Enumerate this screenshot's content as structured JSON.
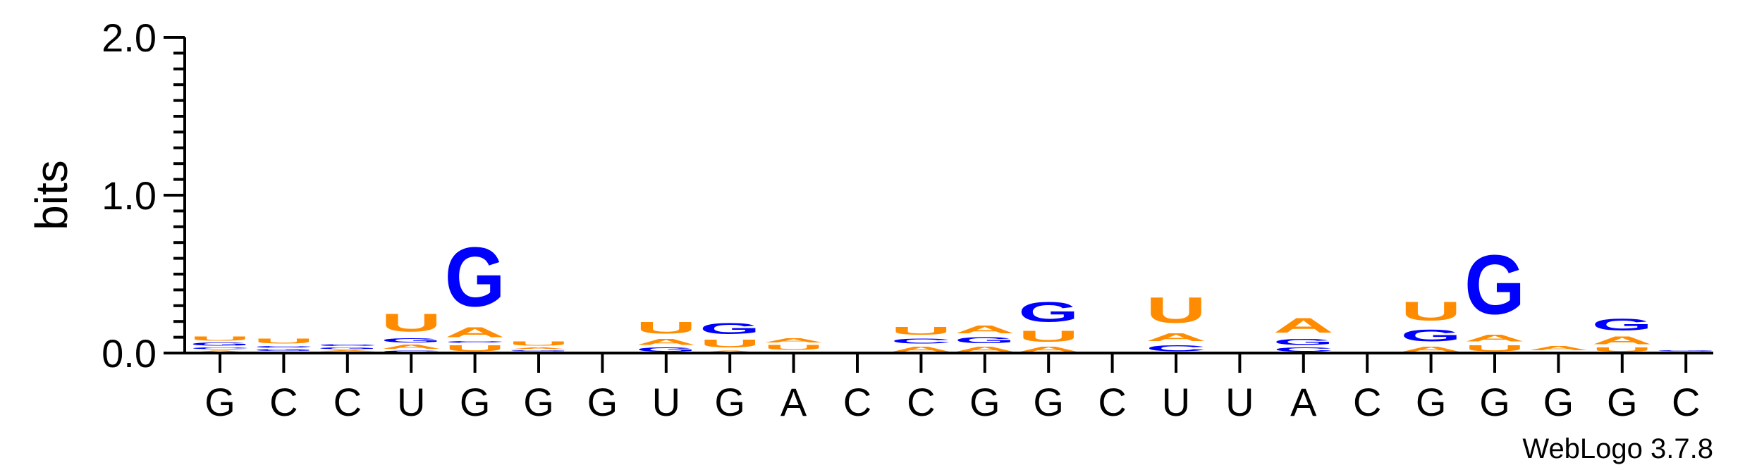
{
  "chart_data": {
    "type": "sequence-logo",
    "ylabel": "bits",
    "ylim": [
      0,
      2.0
    ],
    "yticks": [
      "0.0",
      "1.0",
      "2.0"
    ],
    "credit": "WebLogo 3.7.8",
    "colors": {
      "G": "#0000ff",
      "C": "#0000ff",
      "A": "#ff8c00",
      "U": "#ff8c00"
    },
    "positions": [
      {
        "label": "G",
        "stack": [
          [
            "A",
            0.02
          ],
          [
            "C",
            0.02
          ],
          [
            "G",
            0.03
          ],
          [
            "U",
            0.04
          ]
        ]
      },
      {
        "label": "C",
        "stack": [
          [
            "A",
            0.01
          ],
          [
            "G",
            0.02
          ],
          [
            "C",
            0.02
          ],
          [
            "U",
            0.05
          ]
        ]
      },
      {
        "label": "C",
        "stack": [
          [
            "U",
            0.01
          ],
          [
            "A",
            0.01
          ],
          [
            "G",
            0.02
          ],
          [
            "C",
            0.02
          ]
        ]
      },
      {
        "label": "U",
        "stack": [
          [
            "C",
            0.02
          ],
          [
            "A",
            0.04
          ],
          [
            "G",
            0.04
          ],
          [
            "U",
            0.18
          ]
        ]
      },
      {
        "label": "G",
        "stack": [
          [
            "U",
            0.06
          ],
          [
            "C",
            0.02
          ],
          [
            "A",
            0.1
          ],
          [
            "G",
            0.6
          ]
        ]
      },
      {
        "label": "G",
        "stack": [
          [
            "C",
            0.01
          ],
          [
            "G",
            0.01
          ],
          [
            "A",
            0.02
          ],
          [
            "U",
            0.04
          ]
        ]
      },
      {
        "label": "G",
        "stack": []
      },
      {
        "label": "U",
        "stack": [
          [
            "G",
            0.04
          ],
          [
            "A",
            0.06
          ],
          [
            "U",
            0.12
          ]
        ]
      },
      {
        "label": "G",
        "stack": [
          [
            "A",
            0.02
          ],
          [
            "U",
            0.08
          ],
          [
            "G",
            0.11
          ]
        ]
      },
      {
        "label": "A",
        "stack": [
          [
            "C",
            0.01
          ],
          [
            "U",
            0.05
          ],
          [
            "A",
            0.04
          ]
        ]
      },
      {
        "label": "C",
        "stack": []
      },
      {
        "label": "C",
        "stack": [
          [
            "A",
            0.05
          ],
          [
            "C",
            0.05
          ],
          [
            "U",
            0.08
          ]
        ]
      },
      {
        "label": "G",
        "stack": [
          [
            "A",
            0.05
          ],
          [
            "G",
            0.06
          ],
          [
            "A",
            0.08
          ]
        ]
      },
      {
        "label": "G",
        "stack": [
          [
            "A",
            0.05
          ],
          [
            "U",
            0.11
          ],
          [
            "G",
            0.2
          ]
        ]
      },
      {
        "label": "C",
        "stack": []
      },
      {
        "label": "U",
        "stack": [
          [
            "C",
            0.06
          ],
          [
            "A",
            0.08
          ],
          [
            "U",
            0.26
          ]
        ]
      },
      {
        "label": "U",
        "stack": []
      },
      {
        "label": "A",
        "stack": [
          [
            "C",
            0.04
          ],
          [
            "G",
            0.06
          ],
          [
            "A",
            0.15
          ]
        ]
      },
      {
        "label": "C",
        "stack": []
      },
      {
        "label": "G",
        "stack": [
          [
            "A",
            0.05
          ],
          [
            "G",
            0.12
          ],
          [
            "U",
            0.19
          ]
        ]
      },
      {
        "label": "G",
        "stack": [
          [
            "U",
            0.06
          ],
          [
            "A",
            0.07
          ],
          [
            "G",
            0.6
          ]
        ]
      },
      {
        "label": "G",
        "stack": [
          [
            "U",
            0.01
          ],
          [
            "A",
            0.04
          ]
        ]
      },
      {
        "label": "G",
        "stack": [
          [
            "U",
            0.04
          ],
          [
            "A",
            0.08
          ],
          [
            "G",
            0.12
          ]
        ]
      },
      {
        "label": "C",
        "stack": [
          [
            "A",
            0.01
          ],
          [
            "G",
            0.01
          ]
        ]
      }
    ]
  }
}
